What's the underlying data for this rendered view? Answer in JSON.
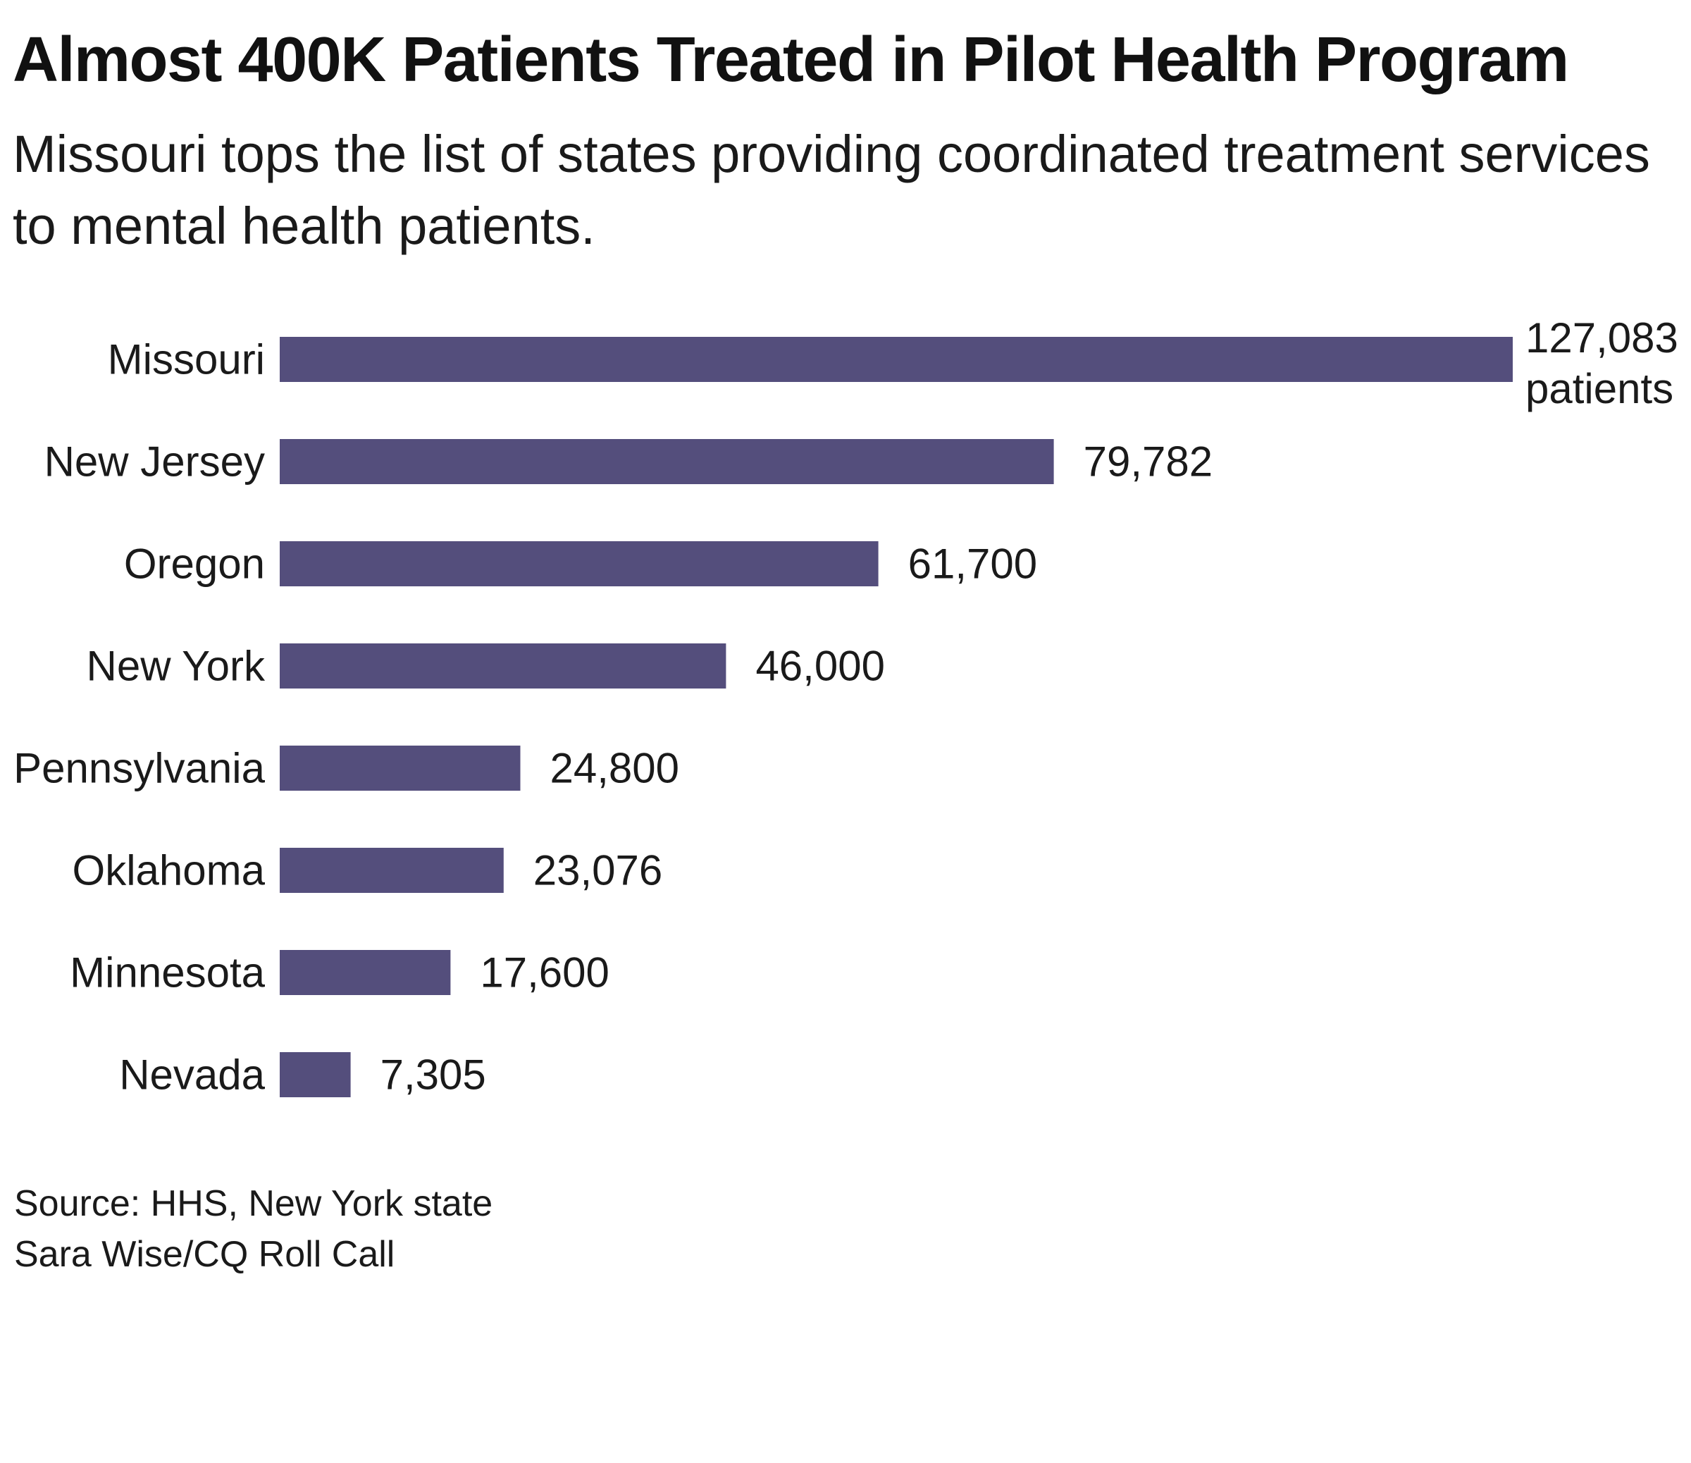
{
  "header": {
    "title": "Almost 400K Patients Treated in Pilot Health Program",
    "subtitle": "Missouri tops the list of states providing coordinated treatment services to mental health patients."
  },
  "chart_data": {
    "type": "bar",
    "orientation": "horizontal",
    "categories": [
      "Missouri",
      "New Jersey",
      "Oregon",
      "New York",
      "Pennsylvania",
      "Oklahoma",
      "Minnesota",
      "Nevada"
    ],
    "values": [
      127083,
      79782,
      61700,
      46000,
      24800,
      23076,
      17600,
      7305
    ],
    "data_labels": [
      "127,083",
      "79,782",
      "61,700",
      "46,000",
      "24,800",
      "23,076",
      "17,600",
      "7,305"
    ],
    "first_label_suffix": "patients",
    "bar_color": "#544e7c",
    "grid": false,
    "legend": "none"
  },
  "footer": {
    "source": "Source: HHS, New York state",
    "credit": "Sara Wise/CQ Roll Call"
  }
}
